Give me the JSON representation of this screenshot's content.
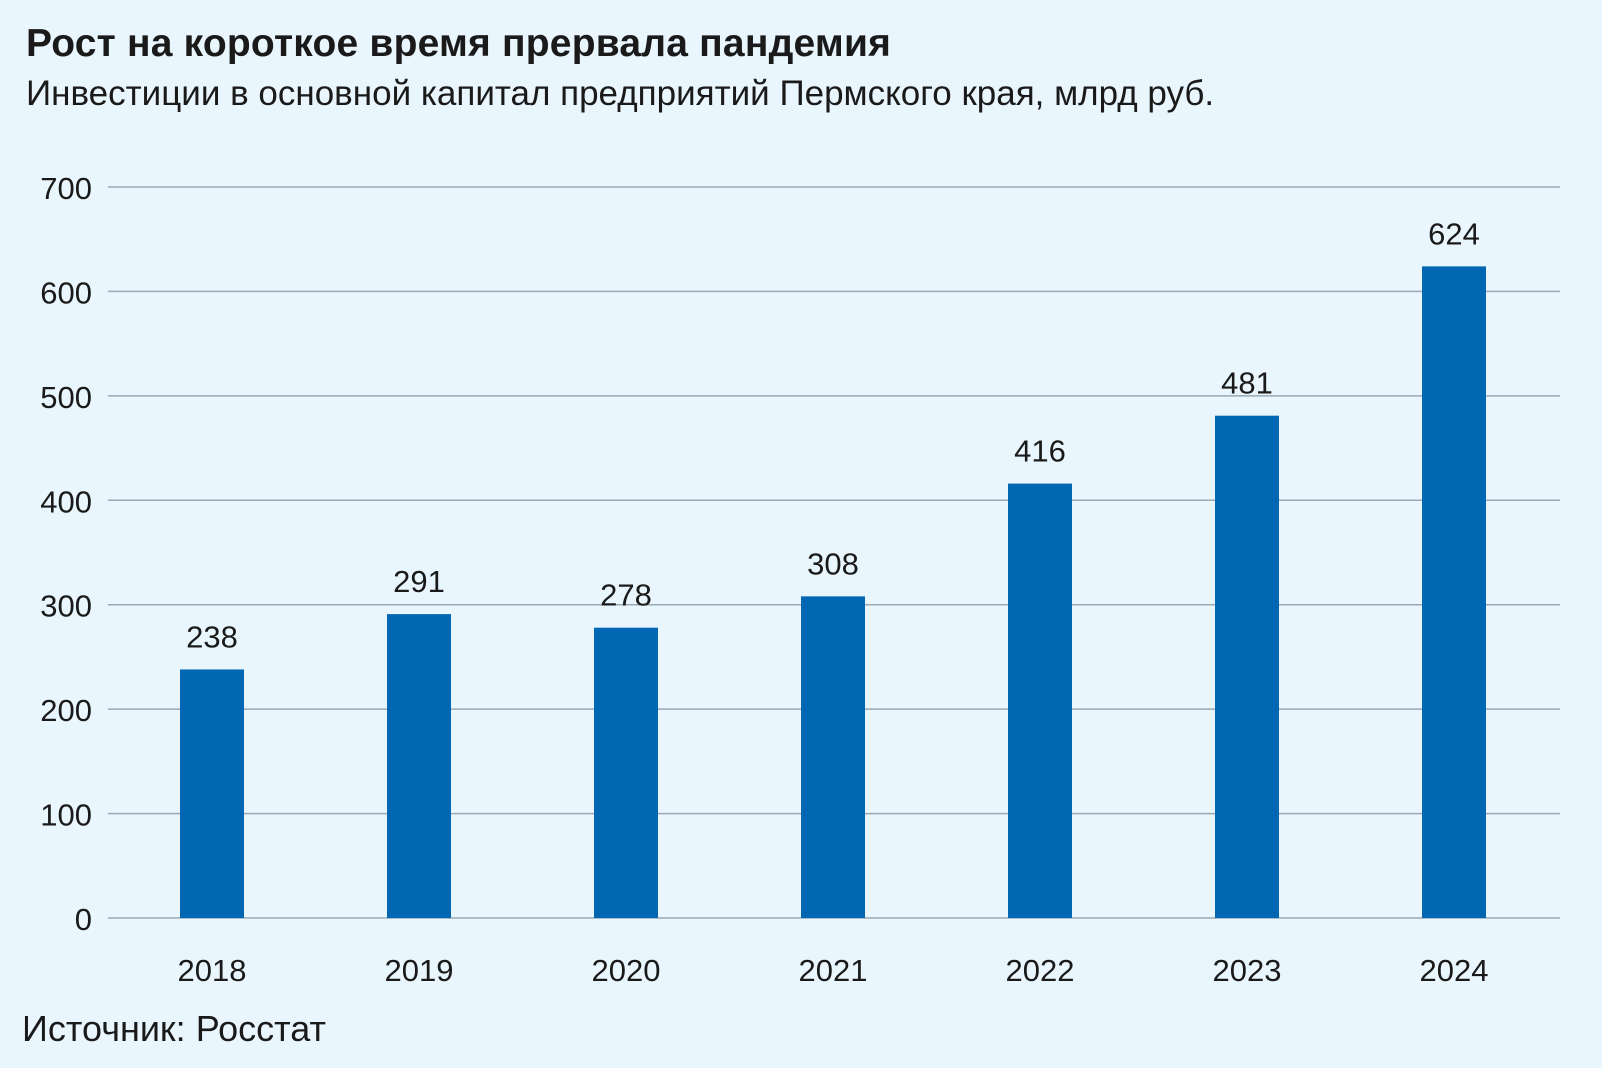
{
  "header": {
    "title": "Рост на короткое время прервала пандемия",
    "subtitle": "Инвестиции в основной капитал предприятий Пермского края, млрд руб."
  },
  "footer": {
    "source": "Источник: Росстат"
  },
  "colors": {
    "background": "#eaf6fd",
    "bar": "#0167b3",
    "grid": "#9aa9b4",
    "text": "#1a1a1a"
  },
  "chart_data": {
    "type": "bar",
    "title": "Рост на короткое время прервала пандемия",
    "subtitle": "Инвестиции в основной капитал предприятий Пермского края, млрд руб.",
    "xlabel": "",
    "ylabel": "",
    "categories": [
      "2018",
      "2019",
      "2020",
      "2021",
      "2022",
      "2023",
      "2024"
    ],
    "values": [
      238,
      291,
      278,
      308,
      416,
      481,
      624
    ],
    "data_labels": [
      "238",
      "291",
      "278",
      "308",
      "416",
      "481",
      "624"
    ],
    "ylim": [
      0,
      700
    ],
    "yticks": [
      0,
      100,
      200,
      300,
      400,
      500,
      600,
      700
    ],
    "ytick_labels": [
      "0",
      "100",
      "200",
      "300",
      "400",
      "500",
      "600",
      "700"
    ],
    "grid": true,
    "legend": "none"
  }
}
